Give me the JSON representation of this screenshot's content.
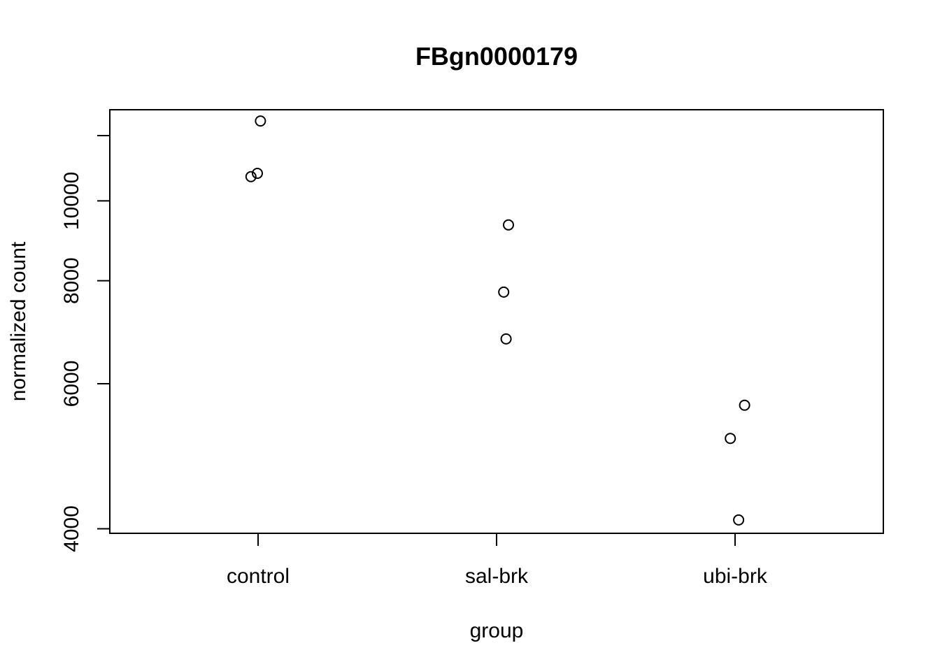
{
  "chart_data": {
    "type": "scatter",
    "title": "FBgn0000179",
    "xlabel": "group",
    "ylabel": "normalized count",
    "y_scale": "log",
    "ylim": [
      3950,
      12900
    ],
    "yticks": [
      4000,
      6000,
      8000,
      10000
    ],
    "categories": [
      "control",
      "sal-brk",
      "ubi-brk"
    ],
    "points": [
      {
        "group": "control",
        "jitter": 0.01,
        "y": 12500
      },
      {
        "group": "control",
        "jitter": -0.03,
        "y": 10700
      },
      {
        "group": "control",
        "jitter": -0.003,
        "y": 10800
      },
      {
        "group": "sal-brk",
        "jitter": 0.05,
        "y": 9350
      },
      {
        "group": "sal-brk",
        "jitter": 0.03,
        "y": 7750
      },
      {
        "group": "sal-brk",
        "jitter": 0.04,
        "y": 6800
      },
      {
        "group": "ubi-brk",
        "jitter": 0.04,
        "y": 5650
      },
      {
        "group": "ubi-brk",
        "jitter": -0.02,
        "y": 5150
      },
      {
        "group": "ubi-brk",
        "jitter": 0.015,
        "y": 4100
      }
    ],
    "grid": false,
    "legend": "none"
  }
}
